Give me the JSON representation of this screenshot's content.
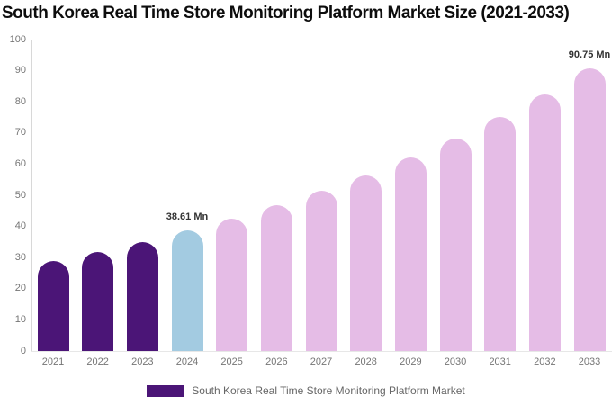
{
  "chart_data": {
    "type": "bar",
    "title": "South Korea Real Time Store Monitoring Platform Market Size (2021-2033)",
    "categories": [
      "2021",
      "2022",
      "2023",
      "2024",
      "2025",
      "2026",
      "2027",
      "2028",
      "2029",
      "2030",
      "2031",
      "2032",
      "2033"
    ],
    "series": [
      {
        "name": "South Korea Real Time Store Monitoring Platform Market",
        "values": [
          29.0,
          31.9,
          35.1,
          38.61,
          42.5,
          46.7,
          51.4,
          56.5,
          62.1,
          68.3,
          75.1,
          82.5,
          90.75
        ]
      }
    ],
    "ylim": [
      0,
      100
    ],
    "y_ticks": [
      0,
      10,
      20,
      30,
      40,
      50,
      60,
      70,
      80,
      90,
      100
    ],
    "grid": false,
    "legend_position": "bottom",
    "bar_colors": [
      "#4B1577",
      "#4B1577",
      "#4B1577",
      "#A3CBE1",
      "#E5BCE6",
      "#E5BCE6",
      "#E5BCE6",
      "#E5BCE6",
      "#E5BCE6",
      "#E5BCE6",
      "#E5BCE6",
      "#E5BCE6",
      "#E5BCE6"
    ],
    "data_labels": [
      {
        "category": "2024",
        "text": "38.61 Mn"
      },
      {
        "category": "2033",
        "text": "90.75 Mn"
      }
    ]
  },
  "legend": {
    "label": "South Korea Real Time Store Monitoring Platform Market",
    "swatch_color": "#4B1577"
  },
  "colors": {
    "historical_bar": "#4B1577",
    "highlight_bar": "#A3CBE1",
    "forecast_bar": "#E5BCE6",
    "title_text": "#0D0D0D",
    "axis_text": "#757575",
    "legend_text": "#666666",
    "data_label_text": "#333333",
    "y_axis_line": "#D8D8D8",
    "x_axis_line": "#E7E7E7"
  }
}
